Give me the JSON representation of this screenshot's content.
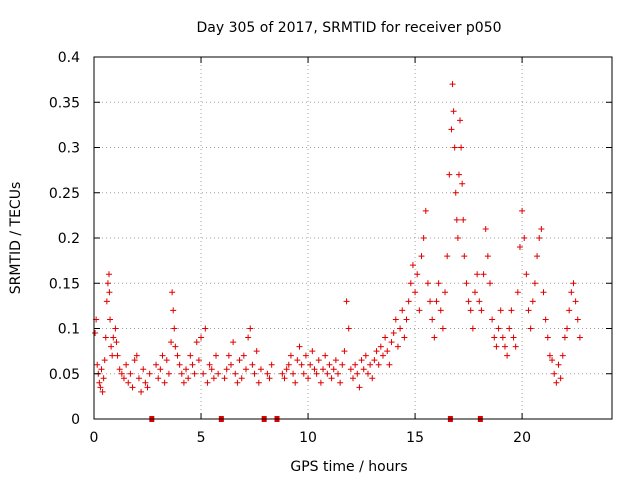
{
  "chart_data": {
    "type": "scatter",
    "title": "Day 305 of 2017, SRMTID for receiver p050",
    "xlabel": "GPS time / hours",
    "ylabel": "SRMTID / TECUs",
    "xlim": [
      0,
      24.2
    ],
    "ylim": [
      0,
      0.4
    ],
    "x_ticks": [
      0,
      5,
      10,
      15,
      20
    ],
    "x_tick_labels": [
      "0",
      "5",
      "10",
      "15",
      "20"
    ],
    "y_ticks": [
      0,
      0.05,
      0.1,
      0.15,
      0.2,
      0.25,
      0.3,
      0.35,
      0.4
    ],
    "y_tick_labels": [
      "0",
      "0.05",
      "0.1",
      "0.15",
      "0.2",
      "0.25",
      "0.3",
      "0.35",
      "0.4"
    ],
    "grid": true,
    "marker": "plus",
    "color": "#e00000",
    "gap_markers_x": [
      2.7,
      5.95,
      7.95,
      8.55,
      16.65,
      18.05
    ],
    "series": [
      {
        "name": "SRMTID",
        "points": [
          [
            0.05,
            0.095
          ],
          [
            0.1,
            0.11
          ],
          [
            0.15,
            0.06
          ],
          [
            0.2,
            0.05
          ],
          [
            0.25,
            0.04
          ],
          [
            0.3,
            0.035
          ],
          [
            0.35,
            0.055
          ],
          [
            0.4,
            0.03
          ],
          [
            0.45,
            0.045
          ],
          [
            0.5,
            0.065
          ],
          [
            0.55,
            0.09
          ],
          [
            0.6,
            0.13
          ],
          [
            0.65,
            0.15
          ],
          [
            0.7,
            0.16
          ],
          [
            0.72,
            0.14
          ],
          [
            0.75,
            0.11
          ],
          [
            0.8,
            0.08
          ],
          [
            0.85,
            0.07
          ],
          [
            0.9,
            0.09
          ],
          [
            1.0,
            0.1
          ],
          [
            1.05,
            0.085
          ],
          [
            1.1,
            0.07
          ],
          [
            1.2,
            0.055
          ],
          [
            1.3,
            0.05
          ],
          [
            1.4,
            0.045
          ],
          [
            1.5,
            0.06
          ],
          [
            1.6,
            0.04
          ],
          [
            1.7,
            0.05
          ],
          [
            1.8,
            0.035
          ],
          [
            1.9,
            0.065
          ],
          [
            2.0,
            0.07
          ],
          [
            2.1,
            0.045
          ],
          [
            2.2,
            0.03
          ],
          [
            2.3,
            0.055
          ],
          [
            2.4,
            0.04
          ],
          [
            2.5,
            0.035
          ],
          [
            2.6,
            0.05
          ],
          [
            2.9,
            0.06
          ],
          [
            3.0,
            0.045
          ],
          [
            3.1,
            0.055
          ],
          [
            3.2,
            0.07
          ],
          [
            3.3,
            0.04
          ],
          [
            3.4,
            0.065
          ],
          [
            3.5,
            0.05
          ],
          [
            3.6,
            0.085
          ],
          [
            3.65,
            0.14
          ],
          [
            3.7,
            0.12
          ],
          [
            3.75,
            0.1
          ],
          [
            3.8,
            0.08
          ],
          [
            3.9,
            0.07
          ],
          [
            4.0,
            0.06
          ],
          [
            4.1,
            0.05
          ],
          [
            4.2,
            0.04
          ],
          [
            4.3,
            0.055
          ],
          [
            4.4,
            0.045
          ],
          [
            4.5,
            0.07
          ],
          [
            4.6,
            0.06
          ],
          [
            4.7,
            0.05
          ],
          [
            4.8,
            0.085
          ],
          [
            4.9,
            0.065
          ],
          [
            5.0,
            0.09
          ],
          [
            5.1,
            0.05
          ],
          [
            5.2,
            0.1
          ],
          [
            5.3,
            0.04
          ],
          [
            5.4,
            0.06
          ],
          [
            5.5,
            0.055
          ],
          [
            5.6,
            0.045
          ],
          [
            5.7,
            0.07
          ],
          [
            5.8,
            0.05
          ],
          [
            6.1,
            0.045
          ],
          [
            6.2,
            0.055
          ],
          [
            6.3,
            0.07
          ],
          [
            6.4,
            0.06
          ],
          [
            6.5,
            0.085
          ],
          [
            6.6,
            0.05
          ],
          [
            6.7,
            0.04
          ],
          [
            6.8,
            0.065
          ],
          [
            6.9,
            0.045
          ],
          [
            7.0,
            0.07
          ],
          [
            7.1,
            0.055
          ],
          [
            7.2,
            0.09
          ],
          [
            7.3,
            0.1
          ],
          [
            7.4,
            0.06
          ],
          [
            7.5,
            0.05
          ],
          [
            7.6,
            0.075
          ],
          [
            7.7,
            0.04
          ],
          [
            7.8,
            0.055
          ],
          [
            8.1,
            0.05
          ],
          [
            8.2,
            0.045
          ],
          [
            8.3,
            0.06
          ],
          [
            8.8,
            0.05
          ],
          [
            8.9,
            0.045
          ],
          [
            9.0,
            0.055
          ],
          [
            9.1,
            0.06
          ],
          [
            9.2,
            0.07
          ],
          [
            9.3,
            0.05
          ],
          [
            9.4,
            0.04
          ],
          [
            9.5,
            0.065
          ],
          [
            9.6,
            0.08
          ],
          [
            9.7,
            0.06
          ],
          [
            9.8,
            0.05
          ],
          [
            9.9,
            0.07
          ],
          [
            10.0,
            0.045
          ],
          [
            10.1,
            0.06
          ],
          [
            10.2,
            0.075
          ],
          [
            10.3,
            0.055
          ],
          [
            10.4,
            0.05
          ],
          [
            10.5,
            0.065
          ],
          [
            10.6,
            0.04
          ],
          [
            10.7,
            0.055
          ],
          [
            10.8,
            0.07
          ],
          [
            10.9,
            0.05
          ],
          [
            11.0,
            0.06
          ],
          [
            11.1,
            0.045
          ],
          [
            11.2,
            0.055
          ],
          [
            11.3,
            0.065
          ],
          [
            11.4,
            0.05
          ],
          [
            11.5,
            0.04
          ],
          [
            11.6,
            0.06
          ],
          [
            11.7,
            0.075
          ],
          [
            11.8,
            0.13
          ],
          [
            11.9,
            0.1
          ],
          [
            12.0,
            0.055
          ],
          [
            12.1,
            0.045
          ],
          [
            12.2,
            0.06
          ],
          [
            12.3,
            0.05
          ],
          [
            12.4,
            0.035
          ],
          [
            12.5,
            0.065
          ],
          [
            12.6,
            0.055
          ],
          [
            12.7,
            0.07
          ],
          [
            12.8,
            0.05
          ],
          [
            12.9,
            0.06
          ],
          [
            13.0,
            0.045
          ],
          [
            13.1,
            0.065
          ],
          [
            13.2,
            0.075
          ],
          [
            13.3,
            0.06
          ],
          [
            13.4,
            0.08
          ],
          [
            13.5,
            0.07
          ],
          [
            13.6,
            0.09
          ],
          [
            13.7,
            0.075
          ],
          [
            13.8,
            0.06
          ],
          [
            13.9,
            0.085
          ],
          [
            14.0,
            0.095
          ],
          [
            14.1,
            0.11
          ],
          [
            14.2,
            0.08
          ],
          [
            14.3,
            0.1
          ],
          [
            14.4,
            0.12
          ],
          [
            14.5,
            0.09
          ],
          [
            14.6,
            0.11
          ],
          [
            14.7,
            0.13
          ],
          [
            14.8,
            0.15
          ],
          [
            14.9,
            0.17
          ],
          [
            15.0,
            0.14
          ],
          [
            15.1,
            0.16
          ],
          [
            15.2,
            0.12
          ],
          [
            15.3,
            0.18
          ],
          [
            15.4,
            0.2
          ],
          [
            15.5,
            0.23
          ],
          [
            15.6,
            0.15
          ],
          [
            15.7,
            0.13
          ],
          [
            15.8,
            0.11
          ],
          [
            15.9,
            0.09
          ],
          [
            16.0,
            0.13
          ],
          [
            16.1,
            0.15
          ],
          [
            16.2,
            0.12
          ],
          [
            16.3,
            0.1
          ],
          [
            16.4,
            0.14
          ],
          [
            16.5,
            0.18
          ],
          [
            16.6,
            0.27
          ],
          [
            16.7,
            0.32
          ],
          [
            16.75,
            0.37
          ],
          [
            16.8,
            0.34
          ],
          [
            16.85,
            0.3
          ],
          [
            16.9,
            0.25
          ],
          [
            16.95,
            0.22
          ],
          [
            17.0,
            0.2
          ],
          [
            17.05,
            0.27
          ],
          [
            17.1,
            0.33
          ],
          [
            17.15,
            0.3
          ],
          [
            17.2,
            0.26
          ],
          [
            17.25,
            0.22
          ],
          [
            17.3,
            0.18
          ],
          [
            17.4,
            0.15
          ],
          [
            17.5,
            0.13
          ],
          [
            17.6,
            0.12
          ],
          [
            17.7,
            0.1
          ],
          [
            17.8,
            0.14
          ],
          [
            17.9,
            0.16
          ],
          [
            18.0,
            0.13
          ],
          [
            18.1,
            0.12
          ],
          [
            18.2,
            0.16
          ],
          [
            18.3,
            0.21
          ],
          [
            18.4,
            0.18
          ],
          [
            18.5,
            0.15
          ],
          [
            18.6,
            0.11
          ],
          [
            18.7,
            0.09
          ],
          [
            18.8,
            0.08
          ],
          [
            18.9,
            0.1
          ],
          [
            19.0,
            0.12
          ],
          [
            19.1,
            0.09
          ],
          [
            19.2,
            0.08
          ],
          [
            19.3,
            0.07
          ],
          [
            19.4,
            0.1
          ],
          [
            19.5,
            0.12
          ],
          [
            19.6,
            0.09
          ],
          [
            19.7,
            0.08
          ],
          [
            19.8,
            0.14
          ],
          [
            19.9,
            0.19
          ],
          [
            20.0,
            0.23
          ],
          [
            20.1,
            0.2
          ],
          [
            20.2,
            0.16
          ],
          [
            20.3,
            0.12
          ],
          [
            20.4,
            0.1
          ],
          [
            20.5,
            0.13
          ],
          [
            20.6,
            0.15
          ],
          [
            20.7,
            0.18
          ],
          [
            20.8,
            0.2
          ],
          [
            20.9,
            0.21
          ],
          [
            21.0,
            0.14
          ],
          [
            21.1,
            0.11
          ],
          [
            21.2,
            0.09
          ],
          [
            21.3,
            0.07
          ],
          [
            21.4,
            0.065
          ],
          [
            21.5,
            0.05
          ],
          [
            21.6,
            0.04
          ],
          [
            21.7,
            0.06
          ],
          [
            21.8,
            0.045
          ],
          [
            21.9,
            0.07
          ],
          [
            22.0,
            0.09
          ],
          [
            22.1,
            0.1
          ],
          [
            22.2,
            0.12
          ],
          [
            22.3,
            0.14
          ],
          [
            22.4,
            0.15
          ],
          [
            22.5,
            0.13
          ],
          [
            22.6,
            0.11
          ],
          [
            22.7,
            0.09
          ]
        ]
      }
    ]
  }
}
